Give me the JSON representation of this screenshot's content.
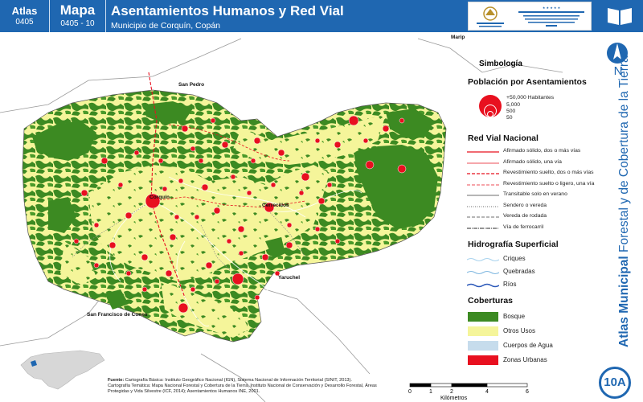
{
  "header": {
    "atlas_label": "Atlas",
    "atlas_code": "0405",
    "mapa_label": "Mapa",
    "mapa_code": "0405 - 10",
    "title": "Asentamientos Humanos y Red Vial",
    "subtitle": "Municipio de Corquín, Copán",
    "logo_left_text": "GOBIERNO DE LA REPÚBLICA DE HONDURAS",
    "logo_right_text": "INSTITUTO NACIONAL DE CONSERVACIÓN Y DESARROLLO FORESTAL ÁREAS PROTEGIDAS Y VIDA SILVESTRE ICF"
  },
  "side": {
    "north_label": "N",
    "vertical_title_bold": "Atlas Municipal",
    "vertical_title_rest": " Forestal y de Cobertura de la Tierra",
    "map_code": "10A"
  },
  "places": {
    "marip": "Marip",
    "san_pedro": "San Pedro",
    "corquin": "Corquín",
    "ceneritos": "Cerrecillos",
    "yaruchel": "Yaruchel",
    "san_francisco": "San Francisco de Cones"
  },
  "legend": {
    "title": "Simbología",
    "population": {
      "heading": "Población por Asentamientos",
      "classes": [
        "+50,000 Habitantes",
        "5,000",
        "500",
        "50"
      ]
    },
    "roads": {
      "heading": "Red Vial Nacional",
      "items": [
        {
          "label": "Afirmado sólido, dos o más vías",
          "color": "#e8101f",
          "style": "solid"
        },
        {
          "label": "Afirmado sólido, una vía",
          "color": "#e8101f",
          "style": "thin"
        },
        {
          "label": "Revestimiento suelto, dos o más vías",
          "color": "#e8101f",
          "style": "dash"
        },
        {
          "label": "Revestimiento suelto o ligero, una vía",
          "color": "#e8101f",
          "style": "dashthin"
        },
        {
          "label": "Transitable solo en verano",
          "color": "#8a8a8a",
          "style": "solid"
        },
        {
          "label": "Sendero o vereda",
          "color": "#8a8a8a",
          "style": "dot"
        },
        {
          "label": "Vereda de rodada",
          "color": "#8a8a8a",
          "style": "dash"
        },
        {
          "label": "Vía de ferrocarril",
          "color": "#555555",
          "style": "rail"
        }
      ]
    },
    "hydro": {
      "heading": "Hidrografía Superficial",
      "items": [
        {
          "label": "Criques",
          "color": "#a9d3ee"
        },
        {
          "label": "Quebradas",
          "color": "#7fb7e0"
        },
        {
          "label": "Ríos",
          "color": "#2a57b8"
        }
      ]
    },
    "cover": {
      "heading": "Coberturas",
      "items": [
        {
          "label": "Bosque",
          "color": "#3c8a22"
        },
        {
          "label": "Otros Usos",
          "color": "#f5f59a"
        },
        {
          "label": "Cuerpos de Agua",
          "color": "#c6dcec"
        },
        {
          "label": "Zonas Urbanas",
          "color": "#e8101f"
        }
      ]
    }
  },
  "source": {
    "label": "Fuente:",
    "line1": "Cartografía Básica: Instituto Geográfico Nacional (IGN), Sistema Nacional de Información Territorial (SINIT, 2013).",
    "line2": "Cartografía Temática: Mapa Nacional Forestal y Cobertura de la Tierra, Instituto Nacional de Conservación y Desarrollo Forestal, Áreas Protegidas y Vida Silvestre (ICF, 2014); Asentamientos Humanos INE, 2001."
  },
  "scale": {
    "ticks": [
      "0",
      "1",
      "2",
      "4",
      "6"
    ],
    "unit": "Kilómetros"
  },
  "colors": {
    "header_blue": "#1f67b1",
    "forest": "#3c8a22",
    "other_uses": "#f5f59a",
    "settlement": "#e8101f"
  }
}
